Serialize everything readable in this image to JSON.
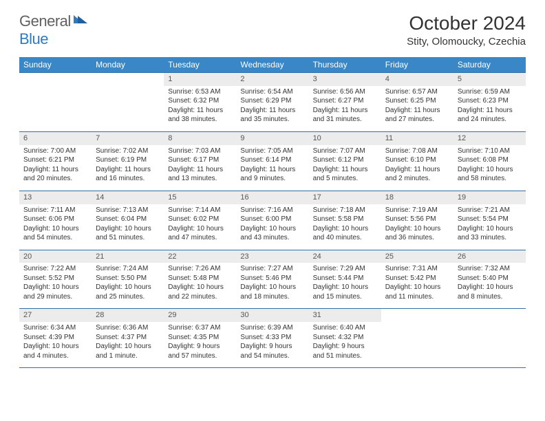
{
  "logo": {
    "general": "General",
    "blue": "Blue"
  },
  "title": "October 2024",
  "location": "Stity, Olomoucky, Czechia",
  "colors": {
    "header_bg": "#3a87c8",
    "header_border": "#2f6fa5",
    "daynum_bg": "#ececec",
    "text": "#333333",
    "logo_gray": "#606060",
    "logo_blue": "#2f7bbf",
    "page_bg": "#ffffff"
  },
  "day_headers": [
    "Sunday",
    "Monday",
    "Tuesday",
    "Wednesday",
    "Thursday",
    "Friday",
    "Saturday"
  ],
  "weeks": [
    [
      {
        "n": "",
        "s": "",
        "t": "",
        "d": ""
      },
      {
        "n": "",
        "s": "",
        "t": "",
        "d": ""
      },
      {
        "n": "1",
        "s": "Sunrise: 6:53 AM",
        "t": "Sunset: 6:32 PM",
        "d": "Daylight: 11 hours and 38 minutes."
      },
      {
        "n": "2",
        "s": "Sunrise: 6:54 AM",
        "t": "Sunset: 6:29 PM",
        "d": "Daylight: 11 hours and 35 minutes."
      },
      {
        "n": "3",
        "s": "Sunrise: 6:56 AM",
        "t": "Sunset: 6:27 PM",
        "d": "Daylight: 11 hours and 31 minutes."
      },
      {
        "n": "4",
        "s": "Sunrise: 6:57 AM",
        "t": "Sunset: 6:25 PM",
        "d": "Daylight: 11 hours and 27 minutes."
      },
      {
        "n": "5",
        "s": "Sunrise: 6:59 AM",
        "t": "Sunset: 6:23 PM",
        "d": "Daylight: 11 hours and 24 minutes."
      }
    ],
    [
      {
        "n": "6",
        "s": "Sunrise: 7:00 AM",
        "t": "Sunset: 6:21 PM",
        "d": "Daylight: 11 hours and 20 minutes."
      },
      {
        "n": "7",
        "s": "Sunrise: 7:02 AM",
        "t": "Sunset: 6:19 PM",
        "d": "Daylight: 11 hours and 16 minutes."
      },
      {
        "n": "8",
        "s": "Sunrise: 7:03 AM",
        "t": "Sunset: 6:17 PM",
        "d": "Daylight: 11 hours and 13 minutes."
      },
      {
        "n": "9",
        "s": "Sunrise: 7:05 AM",
        "t": "Sunset: 6:14 PM",
        "d": "Daylight: 11 hours and 9 minutes."
      },
      {
        "n": "10",
        "s": "Sunrise: 7:07 AM",
        "t": "Sunset: 6:12 PM",
        "d": "Daylight: 11 hours and 5 minutes."
      },
      {
        "n": "11",
        "s": "Sunrise: 7:08 AM",
        "t": "Sunset: 6:10 PM",
        "d": "Daylight: 11 hours and 2 minutes."
      },
      {
        "n": "12",
        "s": "Sunrise: 7:10 AM",
        "t": "Sunset: 6:08 PM",
        "d": "Daylight: 10 hours and 58 minutes."
      }
    ],
    [
      {
        "n": "13",
        "s": "Sunrise: 7:11 AM",
        "t": "Sunset: 6:06 PM",
        "d": "Daylight: 10 hours and 54 minutes."
      },
      {
        "n": "14",
        "s": "Sunrise: 7:13 AM",
        "t": "Sunset: 6:04 PM",
        "d": "Daylight: 10 hours and 51 minutes."
      },
      {
        "n": "15",
        "s": "Sunrise: 7:14 AM",
        "t": "Sunset: 6:02 PM",
        "d": "Daylight: 10 hours and 47 minutes."
      },
      {
        "n": "16",
        "s": "Sunrise: 7:16 AM",
        "t": "Sunset: 6:00 PM",
        "d": "Daylight: 10 hours and 43 minutes."
      },
      {
        "n": "17",
        "s": "Sunrise: 7:18 AM",
        "t": "Sunset: 5:58 PM",
        "d": "Daylight: 10 hours and 40 minutes."
      },
      {
        "n": "18",
        "s": "Sunrise: 7:19 AM",
        "t": "Sunset: 5:56 PM",
        "d": "Daylight: 10 hours and 36 minutes."
      },
      {
        "n": "19",
        "s": "Sunrise: 7:21 AM",
        "t": "Sunset: 5:54 PM",
        "d": "Daylight: 10 hours and 33 minutes."
      }
    ],
    [
      {
        "n": "20",
        "s": "Sunrise: 7:22 AM",
        "t": "Sunset: 5:52 PM",
        "d": "Daylight: 10 hours and 29 minutes."
      },
      {
        "n": "21",
        "s": "Sunrise: 7:24 AM",
        "t": "Sunset: 5:50 PM",
        "d": "Daylight: 10 hours and 25 minutes."
      },
      {
        "n": "22",
        "s": "Sunrise: 7:26 AM",
        "t": "Sunset: 5:48 PM",
        "d": "Daylight: 10 hours and 22 minutes."
      },
      {
        "n": "23",
        "s": "Sunrise: 7:27 AM",
        "t": "Sunset: 5:46 PM",
        "d": "Daylight: 10 hours and 18 minutes."
      },
      {
        "n": "24",
        "s": "Sunrise: 7:29 AM",
        "t": "Sunset: 5:44 PM",
        "d": "Daylight: 10 hours and 15 minutes."
      },
      {
        "n": "25",
        "s": "Sunrise: 7:31 AM",
        "t": "Sunset: 5:42 PM",
        "d": "Daylight: 10 hours and 11 minutes."
      },
      {
        "n": "26",
        "s": "Sunrise: 7:32 AM",
        "t": "Sunset: 5:40 PM",
        "d": "Daylight: 10 hours and 8 minutes."
      }
    ],
    [
      {
        "n": "27",
        "s": "Sunrise: 6:34 AM",
        "t": "Sunset: 4:39 PM",
        "d": "Daylight: 10 hours and 4 minutes."
      },
      {
        "n": "28",
        "s": "Sunrise: 6:36 AM",
        "t": "Sunset: 4:37 PM",
        "d": "Daylight: 10 hours and 1 minute."
      },
      {
        "n": "29",
        "s": "Sunrise: 6:37 AM",
        "t": "Sunset: 4:35 PM",
        "d": "Daylight: 9 hours and 57 minutes."
      },
      {
        "n": "30",
        "s": "Sunrise: 6:39 AM",
        "t": "Sunset: 4:33 PM",
        "d": "Daylight: 9 hours and 54 minutes."
      },
      {
        "n": "31",
        "s": "Sunrise: 6:40 AM",
        "t": "Sunset: 4:32 PM",
        "d": "Daylight: 9 hours and 51 minutes."
      },
      {
        "n": "",
        "s": "",
        "t": "",
        "d": ""
      },
      {
        "n": "",
        "s": "",
        "t": "",
        "d": ""
      }
    ]
  ]
}
